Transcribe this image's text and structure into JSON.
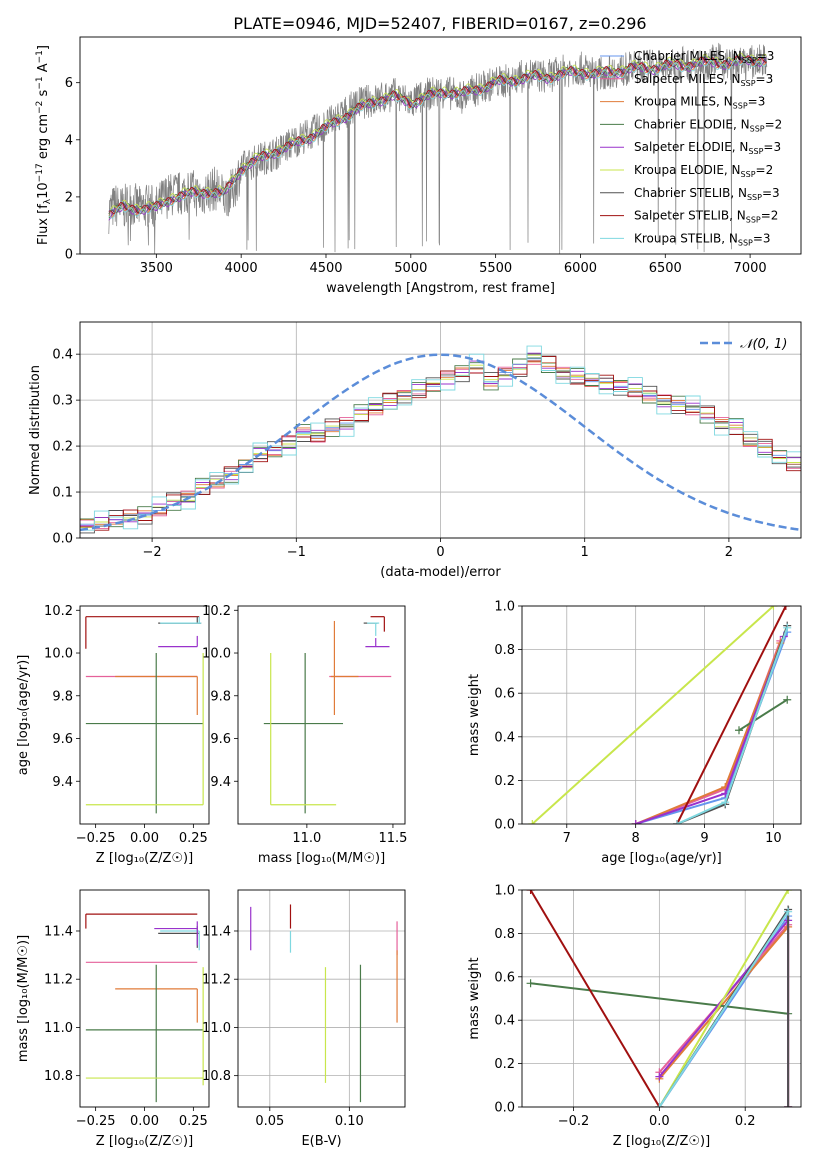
{
  "figure_title": "PLATE=0946, MJD=52407, FIBERID=0167, z=0.296",
  "colors": {
    "chabrier_miles": "#6495ED",
    "salpeter_miles": "#E5619A",
    "kroupa_miles": "#E07B39",
    "chabrier_elodie": "#4A7B4A",
    "salpeter_elodie": "#9932CC",
    "kroupa_elodie": "#C8E64C",
    "chabrier_stelib": "#505050",
    "salpeter_stelib": "#A01010",
    "kroupa_stelib": "#7FD8E0",
    "observed": "#808080",
    "normal": "#5B8DD9"
  },
  "chart_data": [
    {
      "type": "line",
      "panel": "spectrum",
      "xlabel": "wavelength [Angstrom, rest frame]",
      "ylabel": "Flux [f_λ 10^-17 erg cm^-2 s^-1 A^-1]",
      "xlim": [
        3050,
        7300
      ],
      "ylim": [
        0,
        7.6
      ],
      "xticks": [
        3500,
        4000,
        4500,
        5000,
        5500,
        6000,
        6500,
        7000
      ],
      "yticks": [
        0,
        2,
        4,
        6
      ],
      "grid": false,
      "legend_position": "right",
      "observed": {
        "x": [
          3220,
          3260,
          3300,
          3350,
          3400,
          3450,
          3500,
          3550,
          3600,
          3650,
          3700,
          3750,
          3800,
          3850,
          3900,
          3950,
          4000,
          4100,
          4200,
          4300,
          4400,
          4500,
          4600,
          4700,
          4800,
          4900,
          5000,
          5100,
          5200,
          5300,
          5400,
          5500,
          5600,
          5700,
          5800,
          5900,
          6000,
          6100,
          6200,
          6300,
          6400,
          6500,
          6600,
          6700,
          6800,
          6900,
          7000,
          7100
        ],
        "y": [
          1.5,
          1.7,
          1.6,
          1.8,
          1.6,
          1.7,
          1.6,
          2.0,
          2.1,
          2.1,
          2.3,
          2.0,
          2.2,
          2.3,
          2.0,
          2.2,
          3.0,
          3.3,
          3.5,
          3.9,
          4.2,
          4.5,
          4.9,
          5.3,
          5.4,
          5.6,
          5.3,
          5.6,
          5.7,
          5.5,
          5.8,
          6.0,
          6.1,
          6.3,
          6.2,
          6.4,
          6.5,
          6.3,
          6.4,
          6.5,
          6.6,
          6.5,
          6.7,
          6.6,
          6.8,
          6.6,
          6.7,
          6.8
        ]
      },
      "model": {
        "x": [
          3220,
          3300,
          3400,
          3500,
          3600,
          3700,
          3800,
          3900,
          4000,
          4100,
          4200,
          4300,
          4400,
          4500,
          4600,
          4700,
          4800,
          4900,
          5000,
          5100,
          5200,
          5300,
          5400,
          5500,
          5600,
          5700,
          5800,
          5900,
          6000,
          6100,
          6200,
          6300,
          6400,
          6500,
          6600,
          6700,
          6800,
          6900,
          7000,
          7100
        ],
        "y": [
          1.4,
          1.6,
          1.6,
          1.6,
          2.0,
          2.1,
          2.2,
          2.1,
          3.0,
          3.3,
          3.6,
          3.8,
          4.1,
          4.4,
          4.8,
          5.1,
          5.4,
          5.5,
          5.3,
          5.5,
          5.7,
          5.6,
          5.8,
          6.0,
          6.1,
          6.2,
          6.2,
          6.3,
          6.4,
          6.3,
          6.4,
          6.5,
          6.5,
          6.6,
          6.6,
          6.7,
          6.7,
          6.7,
          6.8,
          6.8
        ]
      },
      "series": [
        {
          "name": "Chabrier MILES, N_SSP=3",
          "color_key": "chabrier_miles"
        },
        {
          "name": "Salpeter MILES, N_SSP=3",
          "color_key": "salpeter_miles"
        },
        {
          "name": "Kroupa MILES, N_SSP=3",
          "color_key": "kroupa_miles"
        },
        {
          "name": "Chabrier ELODIE, N_SSP=2",
          "color_key": "chabrier_elodie"
        },
        {
          "name": "Salpeter ELODIE, N_SSP=3",
          "color_key": "salpeter_elodie"
        },
        {
          "name": "Kroupa ELODIE, N_SSP=2",
          "color_key": "kroupa_elodie"
        },
        {
          "name": "Chabrier STELIB, N_SSP=3",
          "color_key": "chabrier_stelib"
        },
        {
          "name": "Salpeter STELIB, N_SSP=2",
          "color_key": "salpeter_stelib"
        },
        {
          "name": "Kroupa STELIB, N_SSP=3",
          "color_key": "kroupa_stelib"
        }
      ],
      "legend_labels": [
        {
          "pre": "Chabrier MILES, N",
          "sub": "SSP",
          "post": "=3"
        },
        {
          "pre": "Salpeter MILES, N",
          "sub": "SSP",
          "post": "=3"
        },
        {
          "pre": "Kroupa MILES, N",
          "sub": "SSP",
          "post": "=3"
        },
        {
          "pre": "Chabrier ELODIE, N",
          "sub": "SSP",
          "post": "=2"
        },
        {
          "pre": "Salpeter ELODIE, N",
          "sub": "SSP",
          "post": "=3"
        },
        {
          "pre": "Kroupa ELODIE, N",
          "sub": "SSP",
          "post": "=2"
        },
        {
          "pre": "Chabrier STELIB, N",
          "sub": "SSP",
          "post": "=3"
        },
        {
          "pre": "Salpeter STELIB, N",
          "sub": "SSP",
          "post": "=2"
        },
        {
          "pre": "Kroupa STELIB, N",
          "sub": "SSP",
          "post": "=3"
        }
      ]
    },
    {
      "type": "line",
      "panel": "residual_histogram",
      "xlabel": "(data-model)/error",
      "ylabel": "Normed distribution",
      "xlim": [
        -2.5,
        2.5
      ],
      "ylim": [
        0,
        0.47
      ],
      "xticks": [
        -2,
        -1,
        0,
        1,
        2
      ],
      "yticks": [
        0.0,
        0.1,
        0.2,
        0.3,
        0.4
      ],
      "grid": true,
      "legend_position": "top-right",
      "legend": "𝒩(0, 1)",
      "bin_edges_start": -2.5,
      "bin_width": 0.1,
      "hist_values": [
        0.03,
        0.03,
        0.04,
        0.05,
        0.05,
        0.06,
        0.08,
        0.09,
        0.11,
        0.12,
        0.14,
        0.16,
        0.18,
        0.19,
        0.21,
        0.23,
        0.22,
        0.24,
        0.25,
        0.27,
        0.28,
        0.3,
        0.31,
        0.32,
        0.33,
        0.35,
        0.36,
        0.37,
        0.34,
        0.36,
        0.37,
        0.39,
        0.38,
        0.36,
        0.35,
        0.34,
        0.34,
        0.33,
        0.32,
        0.31,
        0.3,
        0.29,
        0.28,
        0.27,
        0.25,
        0.24,
        0.21,
        0.2,
        0.18,
        0.16
      ],
      "hist_offsets": [
        0.0,
        0.012,
        -0.01,
        0.02,
        -0.015,
        0.008,
        -0.02,
        0.015,
        0.03
      ],
      "normal_curve": {
        "mean": 0,
        "sigma": 1
      }
    },
    {
      "type": "scatter",
      "panel": "age_vs_Z",
      "xlabel": "Z [log₁₀(Z/Z☉)]",
      "ylabel": "age  [log₁₀(age/yr)]",
      "xlim": [
        -0.33,
        0.33
      ],
      "ylim": [
        9.2,
        10.22
      ],
      "xticks": [
        -0.25,
        0.0,
        0.25
      ],
      "yticks": [
        9.4,
        9.6,
        9.8,
        10.0,
        10.2
      ]
    },
    {
      "type": "scatter",
      "panel": "age_vs_mass",
      "xlabel": "mass [log₁₀(M/M☉)]",
      "ylabel": "",
      "xlim": [
        10.6,
        11.57
      ],
      "ylim": [
        9.2,
        10.22
      ],
      "xticks": [
        11.0,
        11.5
      ],
      "yticks": [
        9.4,
        9.6,
        9.8,
        10.0,
        10.2
      ]
    },
    {
      "type": "line",
      "panel": "mass_weight_vs_age",
      "xlabel": "age  [log₁₀(age/yr)]",
      "ylabel": "mass weight",
      "xlim": [
        6.35,
        10.4
      ],
      "ylim": [
        0,
        1
      ],
      "xticks": [
        7,
        8,
        9,
        10
      ],
      "yticks": [
        0.0,
        0.2,
        0.4,
        0.6,
        0.8,
        1.0
      ],
      "grid": true,
      "series": [
        {
          "name": "Chabrier MILES",
          "color_key": "chabrier_miles",
          "x": [
            8.0,
            9.3,
            10.2
          ],
          "y": [
            0.0,
            0.12,
            0.88
          ]
        },
        {
          "name": "Salpeter MILES",
          "color_key": "salpeter_miles",
          "x": [
            8.0,
            9.3,
            10.1
          ],
          "y": [
            0.0,
            0.16,
            0.84
          ]
        },
        {
          "name": "Kroupa MILES",
          "color_key": "kroupa_miles",
          "x": [
            8.0,
            9.3,
            10.1
          ],
          "y": [
            0.0,
            0.17,
            0.83
          ]
        },
        {
          "name": "Chabrier ELODIE",
          "color_key": "chabrier_elodie",
          "x": [
            9.5,
            10.2
          ],
          "y": [
            0.43,
            0.57
          ]
        },
        {
          "name": "Salpeter ELODIE",
          "color_key": "salpeter_elodie",
          "x": [
            8.0,
            9.3,
            10.15
          ],
          "y": [
            0.0,
            0.14,
            0.86
          ]
        },
        {
          "name": "Kroupa ELODIE",
          "color_key": "kroupa_elodie",
          "x": [
            6.5,
            10.0
          ],
          "y": [
            0.0,
            1.0
          ]
        },
        {
          "name": "Chabrier STELIB",
          "color_key": "chabrier_stelib",
          "x": [
            8.6,
            9.3,
            10.2
          ],
          "y": [
            0.0,
            0.09,
            0.91
          ]
        },
        {
          "name": "Salpeter STELIB",
          "color_key": "salpeter_stelib",
          "x": [
            8.6,
            10.18
          ],
          "y": [
            0.0,
            1.0
          ]
        },
        {
          "name": "Kroupa STELIB",
          "color_key": "kroupa_stelib",
          "x": [
            8.6,
            9.3,
            10.2
          ],
          "y": [
            0.0,
            0.1,
            0.9
          ]
        }
      ]
    },
    {
      "type": "scatter",
      "panel": "mass_vs_Z",
      "xlabel": "Z [log₁₀(Z/Z☉)]",
      "ylabel": "mass [log₁₀(M/M☉)]",
      "xlim": [
        -0.33,
        0.33
      ],
      "ylim": [
        10.67,
        11.57
      ],
      "xticks": [
        -0.25,
        0.0,
        0.25
      ],
      "yticks": [
        10.8,
        11.0,
        11.2,
        11.4
      ]
    },
    {
      "type": "scatter",
      "panel": "mass_vs_ebv",
      "xlabel": "E(B-V)",
      "ylabel": "",
      "xlim": [
        0.03,
        0.135
      ],
      "ylim": [
        10.67,
        11.57
      ],
      "xticks": [
        0.05,
        0.1
      ],
      "yticks": [
        10.8,
        11.0,
        11.2,
        11.4
      ],
      "grid": true
    },
    {
      "type": "line",
      "panel": "mass_weight_vs_Z",
      "xlabel": "Z [log₁₀(Z/Z☉)]",
      "ylabel": "mass weight",
      "xlim": [
        -0.32,
        0.33
      ],
      "ylim": [
        0,
        1
      ],
      "xticks": [
        -0.2,
        0.0,
        0.2
      ],
      "yticks": [
        0.0,
        0.2,
        0.4,
        0.6,
        0.8,
        1.0
      ],
      "grid": true,
      "series": [
        {
          "name": "Chabrier MILES",
          "color_key": "chabrier_miles",
          "x": [
            0.0,
            0.3,
            0.3
          ],
          "y": [
            0.0,
            0.88,
            0.0
          ]
        },
        {
          "name": "Salpeter MILES",
          "color_key": "salpeter_miles",
          "x": [
            0.0,
            0.3,
            0.3
          ],
          "y": [
            0.16,
            0.84,
            0.0
          ]
        },
        {
          "name": "Kroupa MILES",
          "color_key": "kroupa_miles",
          "x": [
            0.0,
            0.3,
            0.3
          ],
          "y": [
            0.13,
            0.83,
            0.0
          ]
        },
        {
          "name": "Chabrier ELODIE",
          "color_key": "chabrier_elodie",
          "x": [
            -0.3,
            0.3
          ],
          "y": [
            0.57,
            0.43
          ]
        },
        {
          "name": "Salpeter ELODIE",
          "color_key": "salpeter_elodie",
          "x": [
            0.0,
            0.3,
            0.3
          ],
          "y": [
            0.14,
            0.86,
            0.0
          ]
        },
        {
          "name": "Kroupa ELODIE",
          "color_key": "kroupa_elodie",
          "x": [
            0.0,
            0.3
          ],
          "y": [
            0.0,
            1.0
          ]
        },
        {
          "name": "Chabrier STELIB",
          "color_key": "chabrier_stelib",
          "x": [
            0.0,
            0.3,
            0.3
          ],
          "y": [
            0.0,
            0.91,
            0.0
          ]
        },
        {
          "name": "Salpeter STELIB",
          "color_key": "salpeter_stelib",
          "x": [
            -0.3,
            0.0
          ],
          "y": [
            1.0,
            0.0
          ]
        },
        {
          "name": "Kroupa STELIB",
          "color_key": "kroupa_stelib",
          "x": [
            0.0,
            0.3
          ],
          "y": [
            0.0,
            0.9
          ]
        }
      ]
    }
  ],
  "crosses_age_Z": [
    {
      "color_key": "salpeter_stelib",
      "x": -0.3,
      "y": 10.17,
      "xl": 0.0,
      "xh": 0.58,
      "yl": 0.0,
      "yh": 0.0,
      "corner": true
    },
    {
      "color_key": "chabrier_stelib",
      "x": 0.27,
      "y": 10.14,
      "xl": 0.2,
      "xh": 0.02,
      "yl": 0.0,
      "yh": 0.03
    },
    {
      "color_key": "kroupa_stelib",
      "x": 0.28,
      "y": 10.14,
      "xl": 0.2,
      "xh": 0.01,
      "yl": 0.0,
      "yh": 0.03
    },
    {
      "color_key": "salpeter_elodie",
      "x": 0.27,
      "y": 10.03,
      "xl": 0.2,
      "xh": 0.0,
      "yl": 0.0,
      "yh": 0.05
    },
    {
      "color_key": "salpeter_miles",
      "x": 0.27,
      "y": 9.89,
      "xl": 0.57,
      "xh": 0.0,
      "yl": 0.0,
      "yh": 0.0
    },
    {
      "color_key": "kroupa_miles",
      "x": 0.27,
      "y": 9.89,
      "xl": 0.42,
      "xh": 0.0,
      "yl": 0.18,
      "yh": 0.0
    },
    {
      "color_key": "chabrier_elodie",
      "x": 0.06,
      "y": 9.67,
      "xl": 0.36,
      "xh": 0.24,
      "yl": 0.42,
      "yh": 0.33
    },
    {
      "color_key": "kroupa_elodie",
      "x": 0.3,
      "y": 9.29,
      "xl": 0.6,
      "xh": 0.0,
      "yl": 0.0,
      "yh": 0.71
    }
  ],
  "crosses_age_mass": [
    {
      "color_key": "salpeter_stelib",
      "x": 11.45,
      "y": 10.17,
      "xl": 0.08,
      "xh": 0.0,
      "yl": 0.07,
      "yh": 0.0
    },
    {
      "color_key": "chabrier_stelib",
      "x": 11.38,
      "y": 10.14,
      "xl": 0.05,
      "xh": 0.03,
      "yl": 0.0,
      "yh": 0.0
    },
    {
      "color_key": "kroupa_stelib",
      "x": 11.4,
      "y": 10.14,
      "xl": 0.05,
      "xh": 0.02,
      "yl": 0.06,
      "yh": 0.0
    },
    {
      "color_key": "salpeter_elodie",
      "x": 11.4,
      "y": 10.03,
      "xl": 0.06,
      "xh": 0.08,
      "yl": 0.0,
      "yh": 0.04
    },
    {
      "color_key": "salpeter_miles",
      "x": 11.27,
      "y": 9.89,
      "xl": 0.14,
      "xh": 0.22,
      "yl": 0.0,
      "yh": 0.0
    },
    {
      "color_key": "kroupa_miles",
      "x": 11.16,
      "y": 9.89,
      "xl": 0.02,
      "xh": 0.14,
      "yl": 0.18,
      "yh": 0.26
    },
    {
      "color_key": "chabrier_elodie",
      "x": 10.99,
      "y": 9.67,
      "xl": 0.24,
      "xh": 0.22,
      "yl": 0.42,
      "yh": 0.33
    },
    {
      "color_key": "kroupa_elodie",
      "x": 10.79,
      "y": 9.29,
      "xl": 0.0,
      "xh": 0.38,
      "yl": 0.0,
      "yh": 0.71
    }
  ],
  "crosses_mass_Z": [
    {
      "color_key": "salpeter_stelib",
      "x": -0.3,
      "y": 11.47,
      "xl": 0.0,
      "xh": 0.57,
      "yl": 0.06,
      "yh": 0.0
    },
    {
      "color_key": "chabrier_stelib",
      "x": 0.27,
      "y": 11.39,
      "xl": 0.2,
      "xh": 0.01,
      "yl": 0.06,
      "yh": 0.03
    },
    {
      "color_key": "kroupa_stelib",
      "x": 0.28,
      "y": 11.4,
      "xl": 0.2,
      "xh": 0.0,
      "yl": 0.08,
      "yh": 0.0
    },
    {
      "color_key": "salpeter_elodie",
      "x": 0.27,
      "y": 11.41,
      "xl": 0.22,
      "xh": 0.0,
      "yl": 0.07,
      "yh": 0.03
    },
    {
      "color_key": "salpeter_miles",
      "x": 0.27,
      "y": 11.27,
      "xl": 0.57,
      "xh": 0.0,
      "yl": 0.0,
      "yh": 0.0
    },
    {
      "color_key": "kroupa_miles",
      "x": 0.27,
      "y": 11.16,
      "xl": 0.42,
      "xh": 0.0,
      "yl": 0.14,
      "yh": 0.0
    },
    {
      "color_key": "chabrier_elodie",
      "x": 0.06,
      "y": 10.99,
      "xl": 0.36,
      "xh": 0.24,
      "yl": 0.3,
      "yh": 0.27
    },
    {
      "color_key": "kroupa_elodie",
      "x": 0.3,
      "y": 10.79,
      "xl": 0.6,
      "xh": 0.0,
      "yl": 0.03,
      "yh": 0.46
    }
  ],
  "bars_mass_ebv": [
    {
      "color_key": "salpeter_elodie",
      "x": 0.038,
      "y": 11.41,
      "yl": 0.09,
      "yh": 0.09
    },
    {
      "color_key": "salpeter_stelib",
      "x": 0.063,
      "y": 11.47,
      "yl": 0.06,
      "yh": 0.04
    },
    {
      "color_key": "kroupa_stelib",
      "x": 0.063,
      "y": 11.36,
      "yl": 0.05,
      "yh": 0.04
    },
    {
      "color_key": "kroupa_elodie",
      "x": 0.085,
      "y": 11.0,
      "yl": 0.23,
      "yh": 0.25
    },
    {
      "color_key": "chabrier_elodie",
      "x": 0.107,
      "y": 10.98,
      "yl": 0.29,
      "yh": 0.28
    },
    {
      "color_key": "salpeter_miles",
      "x": 0.13,
      "y": 11.34,
      "yl": 0.04,
      "yh": 0.1
    },
    {
      "color_key": "kroupa_miles",
      "x": 0.13,
      "y": 11.17,
      "yl": 0.15,
      "yh": 0.15
    }
  ]
}
